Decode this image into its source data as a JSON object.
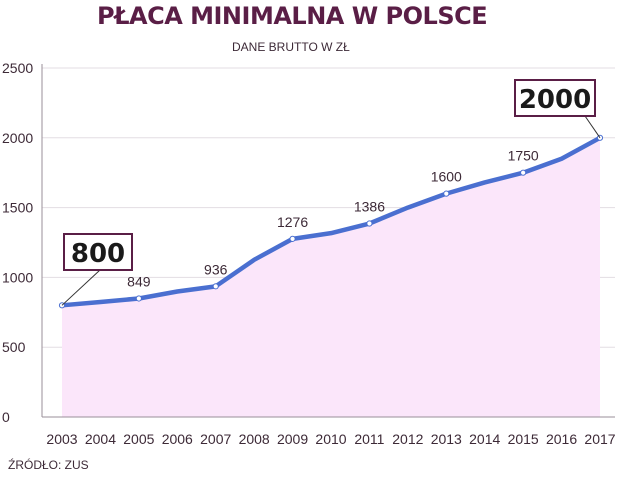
{
  "title": "PŁACA MINIMALNA W POLSCE",
  "subtitle": "DANE BRUTTO W ZŁ",
  "source": "ŹRÓDŁO: ZUS",
  "colors": {
    "line": "#4a6fd0",
    "area": "#fbe6fa",
    "grid": "#e3dde3",
    "axis": "#9a8f98",
    "callout_border": "#5a1e46"
  },
  "chart_data": {
    "type": "area",
    "title": "PŁACA MINIMALNA W POLSCE",
    "subtitle": "DANE BRUTTO W ZŁ",
    "xlabel": "",
    "ylabel": "",
    "x": [
      2003,
      2004,
      2005,
      2006,
      2007,
      2008,
      2009,
      2010,
      2011,
      2012,
      2013,
      2014,
      2015,
      2016,
      2017
    ],
    "values": [
      800,
      824,
      849,
      899,
      936,
      1126,
      1276,
      1317,
      1386,
      1500,
      1600,
      1680,
      1750,
      1850,
      2000
    ],
    "ylim": [
      0,
      2500
    ],
    "yticks": [
      0,
      500,
      1000,
      1500,
      2000,
      2500
    ],
    "grid": true,
    "data_labels": [
      {
        "x": 2005,
        "text": "849"
      },
      {
        "x": 2007,
        "text": "936"
      },
      {
        "x": 2009,
        "text": "1276"
      },
      {
        "x": 2011,
        "text": "1386"
      },
      {
        "x": 2013,
        "text": "1600"
      },
      {
        "x": 2015,
        "text": "1750"
      }
    ],
    "callouts": [
      {
        "x": 2003,
        "text": "800"
      },
      {
        "x": 2017,
        "text": "2000"
      }
    ]
  }
}
